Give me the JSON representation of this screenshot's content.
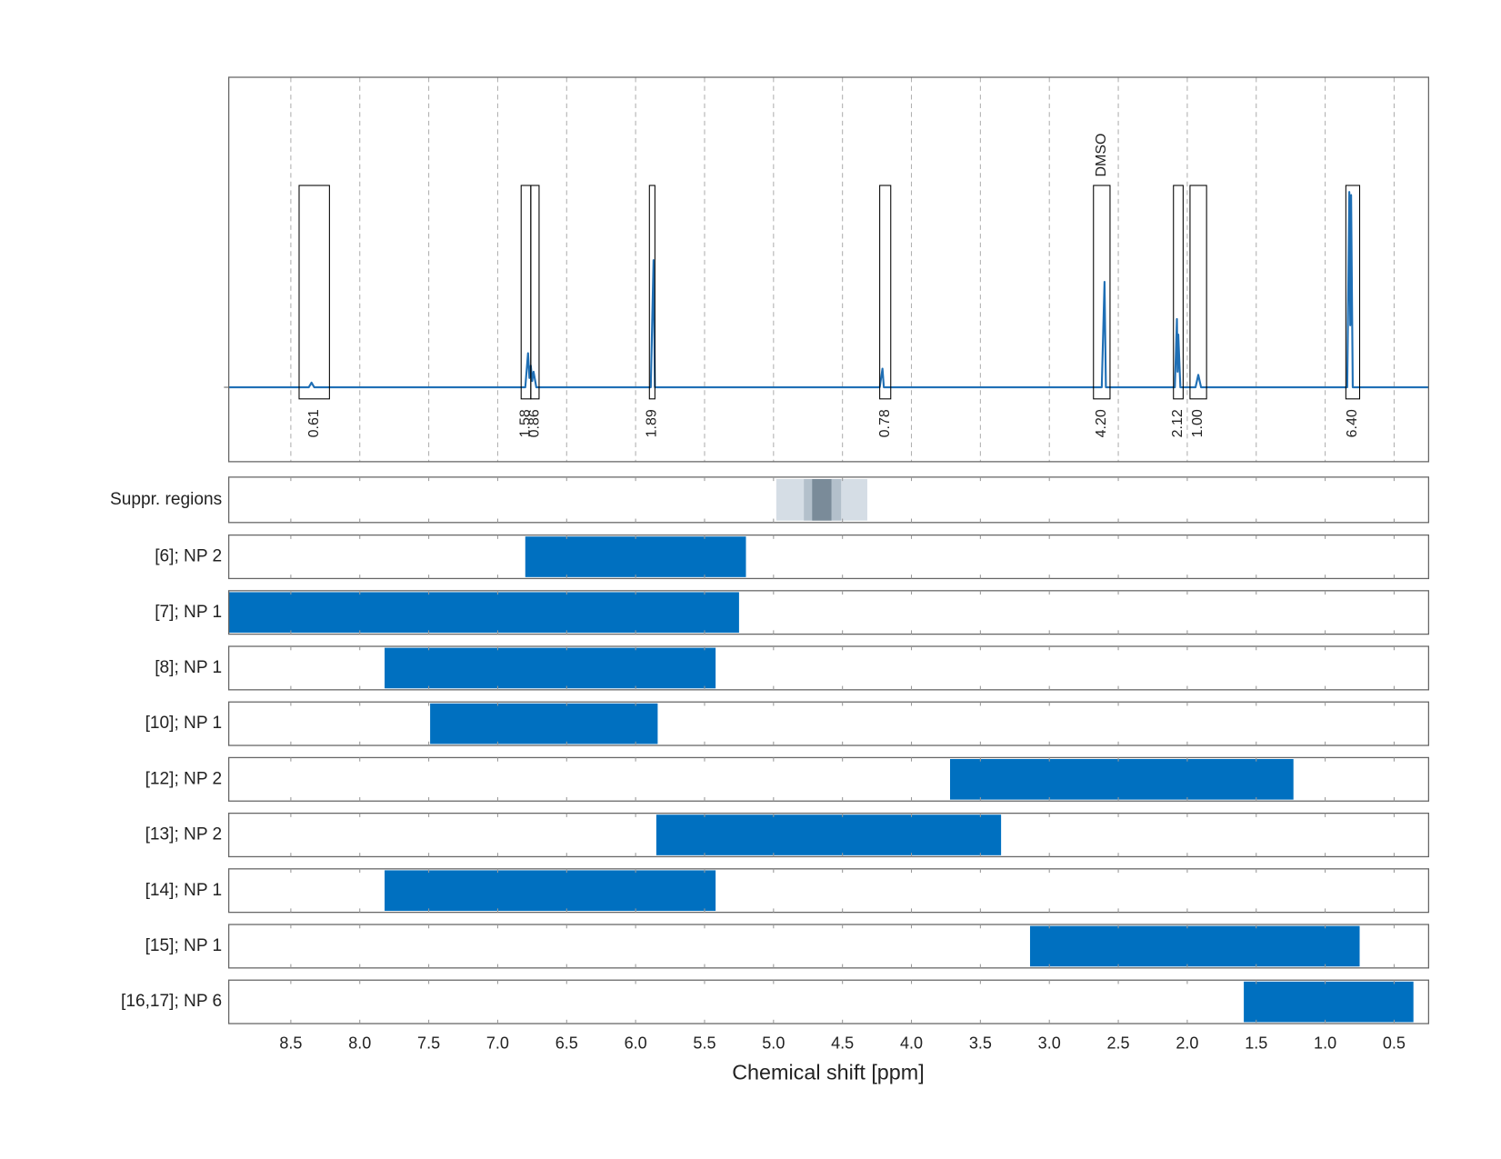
{
  "chart_data": {
    "type": "spectrum",
    "x_label": "Chemical shift [ppm]",
    "xlim": [
      8.95,
      0.25
    ],
    "xticks": [
      8.5,
      {
        "value": 8,
        "label": "8.0"
      },
      7.5,
      {
        "value": 7,
        "label": "7.0"
      },
      6.5,
      {
        "value": 6,
        "label": "6.0"
      },
      5.5,
      {
        "value": 5,
        "label": "5.0"
      },
      4.5,
      {
        "value": 4,
        "label": "4.0"
      },
      3.5,
      {
        "value": 3,
        "label": "3.0"
      },
      2.5,
      {
        "value": 2,
        "label": "2.0"
      },
      1.5,
      {
        "value": 1,
        "label": "1.0"
      },
      0.5
    ],
    "ylim": [
      -0.24,
      1.0
    ],
    "grid": true,
    "spectrum": {
      "color": "#1f6fb5",
      "x": [
        8.95,
        8.37,
        8.35,
        8.33,
        6.8,
        6.78,
        6.77,
        6.76,
        6.75,
        6.74,
        6.72,
        5.89,
        5.87,
        5.86,
        4.23,
        4.21,
        4.2,
        2.62,
        2.6,
        2.59,
        2.09,
        2.075,
        2.07,
        2.065,
        2.05,
        1.94,
        1.92,
        1.9,
        0.84,
        0.825,
        0.818,
        0.812,
        0.8,
        0.25
      ],
      "y": [
        0,
        0,
        0.015,
        0,
        0,
        0.11,
        0.03,
        0.07,
        0.02,
        0.05,
        0,
        0,
        0.41,
        0,
        0,
        0.06,
        0,
        0,
        0.34,
        0,
        0,
        0.22,
        0.05,
        0.17,
        0,
        0,
        0.04,
        0,
        0,
        0.63,
        0.2,
        0.62,
        0,
        0
      ]
    },
    "integrals": {
      "ranges": [
        [
          8.44,
          8.22
        ],
        [
          6.83,
          6.76
        ],
        [
          6.76,
          6.7
        ],
        [
          5.9,
          5.86
        ],
        [
          4.23,
          4.15
        ],
        [
          2.68,
          2.56
        ],
        [
          2.1,
          2.03
        ],
        [
          1.98,
          1.86
        ],
        [
          0.85,
          0.75
        ]
      ],
      "values": [
        0.61,
        1.58,
        0.86,
        1.89,
        0.78,
        4.2,
        2.12,
        1.0,
        6.4
      ],
      "value_labels": [
        "0.61",
        "1.58",
        "0.86",
        "1.89",
        "0.78",
        "4.20",
        "2.12",
        "1.00",
        "6.40"
      ],
      "annotations": [
        null,
        null,
        null,
        null,
        null,
        "DMSO",
        null,
        null,
        null
      ],
      "label_color": "#ff0000"
    },
    "suppressed": {
      "name": "Suppr. regions",
      "ranges": [
        [
          4.98,
          4.32
        ],
        [
          4.78,
          4.51
        ],
        [
          4.72,
          4.58
        ]
      ],
      "colors": [
        "#d5dde5",
        "#b3c0cb",
        "#7a8b99"
      ]
    },
    "range_color": "#0070c0",
    "ranges": [
      {
        "name": "[6]; NP 2",
        "values": [
          6.8,
          5.2
        ]
      },
      {
        "name": "[7]; NP 1",
        "values": [
          8.95,
          5.25
        ]
      },
      {
        "name": "[8]; NP 1",
        "values": [
          7.82,
          5.42
        ]
      },
      {
        "name": "[10]; NP 1",
        "values": [
          7.49,
          5.84
        ]
      },
      {
        "name": "[12]; NP 2",
        "values": [
          3.72,
          1.23
        ]
      },
      {
        "name": "[13]; NP 2",
        "values": [
          5.85,
          3.35
        ]
      },
      {
        "name": "[14]; NP 1",
        "values": [
          7.82,
          5.42
        ]
      },
      {
        "name": "[15]; NP 1",
        "values": [
          3.14,
          0.75
        ]
      },
      {
        "name": "[16,17]; NP 6",
        "values": [
          1.59,
          0.36
        ]
      }
    ]
  }
}
